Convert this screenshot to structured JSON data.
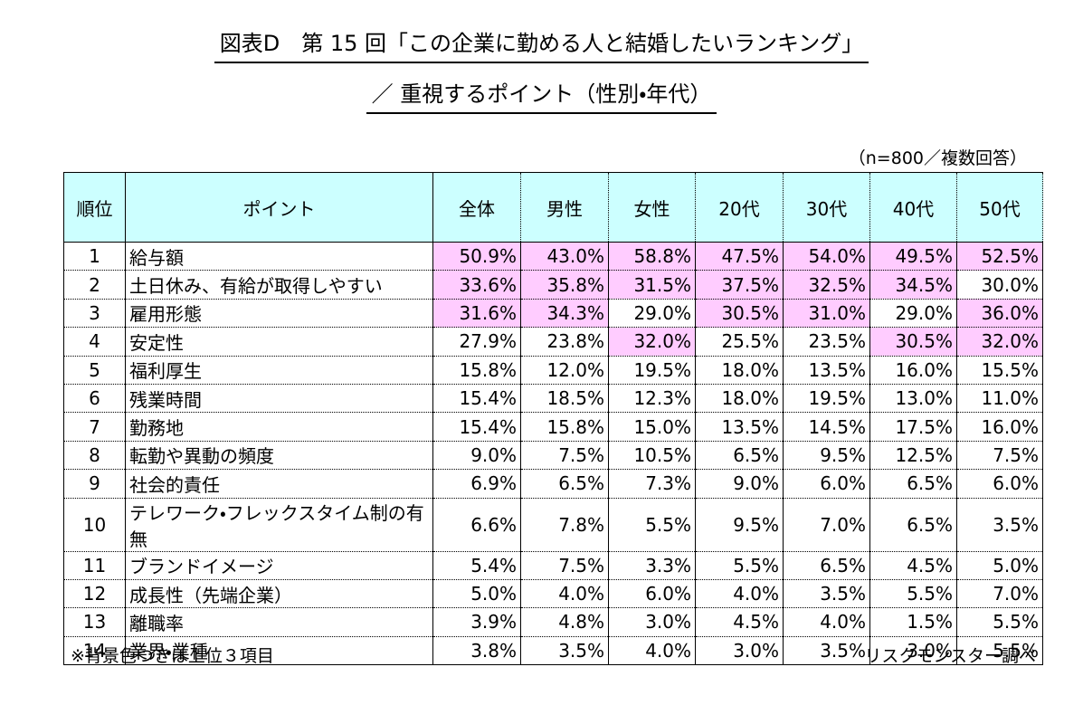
{
  "header": {
    "title": "図表D　第 15 回「この企業に勤める人と結婚したいランキング」",
    "subtitle": "／ 重視するポイント（性別・年代）",
    "sample_note": "（n=800／複数回答）"
  },
  "table": {
    "columns": [
      "順位",
      "ポイント",
      "全体",
      "男性",
      "女性",
      "20代",
      "30代",
      "40代",
      "50代"
    ],
    "highlight_color": "#ffccff",
    "rows": [
      {
        "cells": [
          "1",
          "給与額",
          "50.9%",
          "43.0%",
          "58.8%",
          "47.5%",
          "54.0%",
          "49.5%",
          "52.5%"
        ],
        "highlight": [
          false,
          false,
          true,
          true,
          true,
          true,
          true,
          true,
          true
        ]
      },
      {
        "cells": [
          "2",
          "土日休み、有給が取得しやすい",
          "33.6%",
          "35.8%",
          "31.5%",
          "37.5%",
          "32.5%",
          "34.5%",
          "30.0%"
        ],
        "highlight": [
          false,
          false,
          true,
          true,
          true,
          true,
          true,
          true,
          false
        ]
      },
      {
        "cells": [
          "3",
          "雇用形態",
          "31.6%",
          "34.3%",
          "29.0%",
          "30.5%",
          "31.0%",
          "29.0%",
          "36.0%"
        ],
        "highlight": [
          false,
          false,
          true,
          true,
          false,
          true,
          true,
          false,
          true
        ]
      },
      {
        "cells": [
          "4",
          "安定性",
          "27.9%",
          "23.8%",
          "32.0%",
          "25.5%",
          "23.5%",
          "30.5%",
          "32.0%"
        ],
        "highlight": [
          false,
          false,
          false,
          false,
          true,
          false,
          false,
          true,
          true
        ]
      },
      {
        "cells": [
          "5",
          "福利厚生",
          "15.8%",
          "12.0%",
          "19.5%",
          "18.0%",
          "13.5%",
          "16.0%",
          "15.5%"
        ],
        "highlight": [
          false,
          false,
          false,
          false,
          false,
          false,
          false,
          false,
          false
        ]
      },
      {
        "cells": [
          "6",
          "残業時間",
          "15.4%",
          "18.5%",
          "12.3%",
          "18.0%",
          "19.5%",
          "13.0%",
          "11.0%"
        ],
        "highlight": [
          false,
          false,
          false,
          false,
          false,
          false,
          false,
          false,
          false
        ]
      },
      {
        "cells": [
          "7",
          "勤務地",
          "15.4%",
          "15.8%",
          "15.0%",
          "13.5%",
          "14.5%",
          "17.5%",
          "16.0%"
        ],
        "highlight": [
          false,
          false,
          false,
          false,
          false,
          false,
          false,
          false,
          false
        ]
      },
      {
        "cells": [
          "8",
          "転勤や異動の頻度",
          "9.0%",
          "7.5%",
          "10.5%",
          "6.5%",
          "9.5%",
          "12.5%",
          "7.5%"
        ],
        "highlight": [
          false,
          false,
          false,
          false,
          false,
          false,
          false,
          false,
          false
        ]
      },
      {
        "cells": [
          "9",
          "社会的責任",
          "6.9%",
          "6.5%",
          "7.3%",
          "9.0%",
          "6.0%",
          "6.5%",
          "6.0%"
        ],
        "highlight": [
          false,
          false,
          false,
          false,
          false,
          false,
          false,
          false,
          false
        ]
      },
      {
        "cells": [
          "10",
          "テレワーク・フレックスタイム制の有無",
          "6.6%",
          "7.8%",
          "5.5%",
          "9.5%",
          "7.0%",
          "6.5%",
          "3.5%"
        ],
        "highlight": [
          false,
          false,
          false,
          false,
          false,
          false,
          false,
          false,
          false
        ]
      },
      {
        "cells": [
          "11",
          "ブランドイメージ",
          "5.4%",
          "7.5%",
          "3.3%",
          "5.5%",
          "6.5%",
          "4.5%",
          "5.0%"
        ],
        "highlight": [
          false,
          false,
          false,
          false,
          false,
          false,
          false,
          false,
          false
        ]
      },
      {
        "cells": [
          "12",
          "成長性（先端企業）",
          "5.0%",
          "4.0%",
          "6.0%",
          "4.0%",
          "3.5%",
          "5.5%",
          "7.0%"
        ],
        "highlight": [
          false,
          false,
          false,
          false,
          false,
          false,
          false,
          false,
          false
        ]
      },
      {
        "cells": [
          "13",
          "離職率",
          "3.9%",
          "4.8%",
          "3.0%",
          "4.5%",
          "4.0%",
          "1.5%",
          "5.5%"
        ],
        "highlight": [
          false,
          false,
          false,
          false,
          false,
          false,
          false,
          false,
          false
        ]
      },
      {
        "cells": [
          "14",
          "業界・業種",
          "3.8%",
          "3.5%",
          "4.0%",
          "3.0%",
          "3.5%",
          "3.0%",
          "5.5%"
        ],
        "highlight": [
          false,
          false,
          false,
          false,
          false,
          false,
          false,
          false,
          false
        ]
      }
    ]
  },
  "footer": {
    "note": "※背景色つきは上位３項目",
    "source": "リスクモンスター調べ"
  }
}
